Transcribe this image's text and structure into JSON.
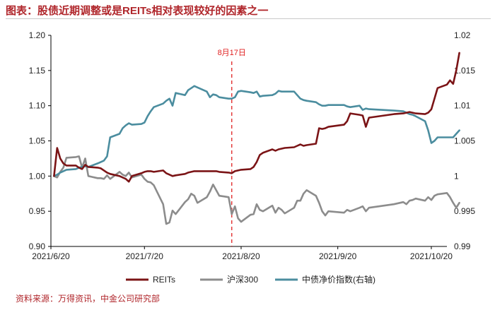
{
  "title": "图表：股债近期调整或是REITs相对表现较好的因素之一",
  "source": "资料来源：万得资讯，中金公司研究部",
  "colors": {
    "reits": "#7b1416",
    "hs300": "#8c8c8c",
    "bond": "#4b8d9f",
    "annotation": "#e02020"
  },
  "chart_data": {
    "type": "line",
    "x_tick_labels": [
      "2021/6/20",
      "2021/7/20",
      "2021/8/20",
      "2021/9/20",
      "2021/10/20"
    ],
    "x_range": [
      "2021/6/20",
      "2021/10/25"
    ],
    "ylim": [
      0.9,
      1.2
    ],
    "y_ticks": [
      "0.90",
      "0.95",
      "1.00",
      "1.05",
      "1.10",
      "1.15",
      "1.20"
    ],
    "y2lim": [
      0.99,
      1.02
    ],
    "y2_ticks": [
      "0.99",
      "0.995",
      "1",
      "1.005",
      "1.01",
      "1.015",
      "1.02"
    ],
    "grid": false,
    "legend_position": "bottom",
    "annotation": {
      "label": "8月17日",
      "x": "2021/8/17"
    },
    "series": [
      {
        "name": "REITs",
        "axis": "left",
        "color_key": "reits",
        "points": [
          [
            "2021/6/21",
            1.0
          ],
          [
            "2021/6/22",
            1.04
          ],
          [
            "2021/6/23",
            1.025
          ],
          [
            "2021/6/24",
            1.018
          ],
          [
            "2021/6/25",
            1.015
          ],
          [
            "2021/6/28",
            1.015
          ],
          [
            "2021/6/29",
            1.012
          ],
          [
            "2021/6/30",
            1.01
          ],
          [
            "2021/7/1",
            1.016
          ],
          [
            "2021/7/2",
            1.013
          ],
          [
            "2021/7/5",
            1.012
          ],
          [
            "2021/7/6",
            1.011
          ],
          [
            "2021/7/7",
            1.008
          ],
          [
            "2021/7/8",
            1.005
          ],
          [
            "2021/7/9",
            1.003
          ],
          [
            "2021/7/12",
            1.0
          ],
          [
            "2021/7/13",
            0.998
          ],
          [
            "2021/7/14",
            0.996
          ],
          [
            "2021/7/15",
            0.992
          ],
          [
            "2021/7/16",
            1.0
          ],
          [
            "2021/7/19",
            1.004
          ],
          [
            "2021/7/20",
            1.006
          ],
          [
            "2021/7/21",
            1.007
          ],
          [
            "2021/7/22",
            1.007
          ],
          [
            "2021/7/23",
            1.006
          ],
          [
            "2021/7/26",
            1.008
          ],
          [
            "2021/7/27",
            1.004
          ],
          [
            "2021/7/28",
            1.002
          ],
          [
            "2021/7/29",
            1.0
          ],
          [
            "2021/7/30",
            1.001
          ],
          [
            "2021/8/2",
            1.003
          ],
          [
            "2021/8/3",
            1.005
          ],
          [
            "2021/8/4",
            1.006
          ],
          [
            "2021/8/5",
            1.007
          ],
          [
            "2021/8/6",
            1.007
          ],
          [
            "2021/8/9",
            1.007
          ],
          [
            "2021/8/10",
            1.007
          ],
          [
            "2021/8/11",
            1.007
          ],
          [
            "2021/8/12",
            1.007
          ],
          [
            "2021/8/13",
            1.006
          ],
          [
            "2021/8/16",
            1.005
          ],
          [
            "2021/8/17",
            1.004
          ],
          [
            "2021/8/18",
            1.007
          ],
          [
            "2021/8/19",
            1.008
          ],
          [
            "2021/8/20",
            1.009
          ],
          [
            "2021/8/23",
            1.01
          ],
          [
            "2021/8/24",
            1.013
          ],
          [
            "2021/8/25",
            1.02
          ],
          [
            "2021/8/26",
            1.03
          ],
          [
            "2021/8/27",
            1.033
          ],
          [
            "2021/8/30",
            1.038
          ],
          [
            "2021/8/31",
            1.036
          ],
          [
            "2021/9/1",
            1.038
          ],
          [
            "2021/9/2",
            1.039
          ],
          [
            "2021/9/3",
            1.04
          ],
          [
            "2021/9/6",
            1.041
          ],
          [
            "2021/9/7",
            1.043
          ],
          [
            "2021/9/8",
            1.045
          ],
          [
            "2021/9/9",
            1.043
          ],
          [
            "2021/9/10",
            1.044
          ],
          [
            "2021/9/13",
            1.046
          ],
          [
            "2021/9/14",
            1.068
          ],
          [
            "2021/9/15",
            1.067
          ],
          [
            "2021/9/16",
            1.068
          ],
          [
            "2021/9/17",
            1.07
          ],
          [
            "2021/9/22",
            1.073
          ],
          [
            "2021/9/23",
            1.078
          ],
          [
            "2021/9/24",
            1.089
          ],
          [
            "2021/9/27",
            1.087
          ],
          [
            "2021/9/28",
            1.086
          ],
          [
            "2021/9/29",
            1.07
          ],
          [
            "2021/9/30",
            1.083
          ],
          [
            "2021/10/8",
            1.088
          ],
          [
            "2021/10/11",
            1.089
          ],
          [
            "2021/10/12",
            1.09
          ],
          [
            "2021/10/13",
            1.091
          ],
          [
            "2021/10/14",
            1.09
          ],
          [
            "2021/10/15",
            1.089
          ],
          [
            "2021/10/18",
            1.088
          ],
          [
            "2021/10/19",
            1.09
          ],
          [
            "2021/10/20",
            1.095
          ],
          [
            "2021/10/21",
            1.11
          ],
          [
            "2021/10/22",
            1.125
          ],
          [
            "2021/10/25",
            1.13
          ],
          [
            "2021/10/26",
            1.136
          ],
          [
            "2021/10/27",
            1.131
          ],
          [
            "2021/10/28",
            1.15
          ],
          [
            "2021/10/29",
            1.175
          ]
        ]
      },
      {
        "name": "沪深300",
        "axis": "left",
        "color_key": "hs300",
        "points": [
          [
            "2021/6/21",
            1.0
          ],
          [
            "2021/6/22",
            0.998
          ],
          [
            "2021/6/23",
            1.006
          ],
          [
            "2021/6/24",
            1.012
          ],
          [
            "2021/6/25",
            1.026
          ],
          [
            "2021/6/28",
            1.027
          ],
          [
            "2021/6/29",
            1.028
          ],
          [
            "2021/6/30",
            1.012
          ],
          [
            "2021/7/1",
            1.025
          ],
          [
            "2021/7/2",
            1.0
          ],
          [
            "2021/7/5",
            0.997
          ],
          [
            "2021/7/6",
            0.997
          ],
          [
            "2021/7/7",
            0.996
          ],
          [
            "2021/7/8",
            1.001
          ],
          [
            "2021/7/9",
            0.996
          ],
          [
            "2021/7/12",
            1.006
          ],
          [
            "2021/7/13",
            1.002
          ],
          [
            "2021/7/14",
            1.0
          ],
          [
            "2021/7/15",
            1.005
          ],
          [
            "2021/7/16",
            0.998
          ],
          [
            "2021/7/19",
            1.002
          ],
          [
            "2021/7/20",
            0.996
          ],
          [
            "2021/7/21",
            0.992
          ],
          [
            "2021/7/22",
            0.991
          ],
          [
            "2021/7/23",
            0.987
          ],
          [
            "2021/7/26",
            0.96
          ],
          [
            "2021/7/27",
            0.932
          ],
          [
            "2021/7/28",
            0.934
          ],
          [
            "2021/7/29",
            0.951
          ],
          [
            "2021/7/30",
            0.946
          ],
          [
            "2021/8/2",
            0.963
          ],
          [
            "2021/8/3",
            0.967
          ],
          [
            "2021/8/4",
            0.975
          ],
          [
            "2021/8/5",
            0.972
          ],
          [
            "2021/8/6",
            0.962
          ],
          [
            "2021/8/9",
            0.97
          ],
          [
            "2021/8/10",
            0.978
          ],
          [
            "2021/8/11",
            0.988
          ],
          [
            "2021/8/12",
            0.98
          ],
          [
            "2021/8/13",
            0.972
          ],
          [
            "2021/8/16",
            0.97
          ],
          [
            "2021/8/17",
            0.946
          ],
          [
            "2021/8/18",
            0.957
          ],
          [
            "2021/8/19",
            0.94
          ],
          [
            "2021/8/20",
            0.935
          ],
          [
            "2021/8/23",
            0.945
          ],
          [
            "2021/8/24",
            0.946
          ],
          [
            "2021/8/25",
            0.96
          ],
          [
            "2021/8/26",
            0.952
          ],
          [
            "2021/8/27",
            0.95
          ],
          [
            "2021/8/30",
            0.958
          ],
          [
            "2021/8/31",
            0.948
          ],
          [
            "2021/9/1",
            0.955
          ],
          [
            "2021/9/2",
            0.952
          ],
          [
            "2021/9/3",
            0.947
          ],
          [
            "2021/9/6",
            0.955
          ],
          [
            "2021/9/7",
            0.965
          ],
          [
            "2021/9/8",
            0.965
          ],
          [
            "2021/9/9",
            0.975
          ],
          [
            "2021/9/10",
            0.98
          ],
          [
            "2021/9/13",
            0.972
          ],
          [
            "2021/9/14",
            0.962
          ],
          [
            "2021/9/15",
            0.95
          ],
          [
            "2021/9/16",
            0.944
          ],
          [
            "2021/9/17",
            0.95
          ],
          [
            "2021/9/22",
            0.948
          ],
          [
            "2021/9/23",
            0.952
          ],
          [
            "2021/9/24",
            0.95
          ],
          [
            "2021/9/27",
            0.955
          ],
          [
            "2021/9/28",
            0.957
          ],
          [
            "2021/9/29",
            0.95
          ],
          [
            "2021/9/30",
            0.955
          ],
          [
            "2021/10/8",
            0.96
          ],
          [
            "2021/10/11",
            0.963
          ],
          [
            "2021/10/12",
            0.96
          ],
          [
            "2021/10/13",
            0.965
          ],
          [
            "2021/10/14",
            0.966
          ],
          [
            "2021/10/15",
            0.968
          ],
          [
            "2021/10/18",
            0.965
          ],
          [
            "2021/10/19",
            0.97
          ],
          [
            "2021/10/20",
            0.966
          ],
          [
            "2021/10/21",
            0.972
          ],
          [
            "2021/10/22",
            0.974
          ],
          [
            "2021/10/25",
            0.976
          ],
          [
            "2021/10/26",
            0.97
          ],
          [
            "2021/10/27",
            0.962
          ],
          [
            "2021/10/28",
            0.955
          ],
          [
            "2021/10/29",
            0.962
          ]
        ]
      },
      {
        "name": "中债净价指数(右轴)",
        "axis": "right",
        "color_key": "bond",
        "points": [
          [
            "2021/6/21",
            1.0
          ],
          [
            "2021/6/22",
            1.0002
          ],
          [
            "2021/6/23",
            1.0005
          ],
          [
            "2021/6/24",
            1.0007
          ],
          [
            "2021/6/25",
            1.0009
          ],
          [
            "2021/6/28",
            1.001
          ],
          [
            "2021/6/29",
            1.0012
          ],
          [
            "2021/6/30",
            1.0013
          ],
          [
            "2021/7/1",
            1.0014
          ],
          [
            "2021/7/2",
            1.0013
          ],
          [
            "2021/7/5",
            1.0018
          ],
          [
            "2021/7/6",
            1.002
          ],
          [
            "2021/7/7",
            1.0022
          ],
          [
            "2021/7/8",
            1.0028
          ],
          [
            "2021/7/9",
            1.0055
          ],
          [
            "2021/7/12",
            1.006
          ],
          [
            "2021/7/13",
            1.0068
          ],
          [
            "2021/7/14",
            1.0072
          ],
          [
            "2021/7/15",
            1.0075
          ],
          [
            "2021/7/16",
            1.0073
          ],
          [
            "2021/7/19",
            1.0074
          ],
          [
            "2021/7/20",
            1.0076
          ],
          [
            "2021/7/21",
            1.0085
          ],
          [
            "2021/7/22",
            1.0092
          ],
          [
            "2021/7/23",
            1.0098
          ],
          [
            "2021/7/26",
            1.0103
          ],
          [
            "2021/7/27",
            1.0107
          ],
          [
            "2021/7/28",
            1.011
          ],
          [
            "2021/7/29",
            1.01
          ],
          [
            "2021/7/30",
            1.0118
          ],
          [
            "2021/8/2",
            1.0115
          ],
          [
            "2021/8/3",
            1.0122
          ],
          [
            "2021/8/4",
            1.0125
          ],
          [
            "2021/8/5",
            1.0128
          ],
          [
            "2021/8/6",
            1.0126
          ],
          [
            "2021/8/9",
            1.012
          ],
          [
            "2021/8/10",
            1.0112
          ],
          [
            "2021/8/11",
            1.0116
          ],
          [
            "2021/8/12",
            1.0115
          ],
          [
            "2021/8/13",
            1.0112
          ],
          [
            "2021/8/16",
            1.011
          ],
          [
            "2021/8/17",
            1.011
          ],
          [
            "2021/8/18",
            1.0112
          ],
          [
            "2021/8/19",
            1.012
          ],
          [
            "2021/8/20",
            1.0121
          ],
          [
            "2021/8/23",
            1.0119
          ],
          [
            "2021/8/24",
            1.0118
          ],
          [
            "2021/8/25",
            1.012
          ],
          [
            "2021/8/26",
            1.0113
          ],
          [
            "2021/8/27",
            1.0114
          ],
          [
            "2021/8/30",
            1.0115
          ],
          [
            "2021/8/31",
            1.0117
          ],
          [
            "2021/9/1",
            1.0121
          ],
          [
            "2021/9/2",
            1.012
          ],
          [
            "2021/9/3",
            1.012
          ],
          [
            "2021/9/6",
            1.012
          ],
          [
            "2021/9/7",
            1.0115
          ],
          [
            "2021/9/8",
            1.011
          ],
          [
            "2021/9/9",
            1.0108
          ],
          [
            "2021/9/10",
            1.0107
          ],
          [
            "2021/9/13",
            1.0105
          ],
          [
            "2021/9/14",
            1.0102
          ],
          [
            "2021/9/15",
            1.01
          ],
          [
            "2021/9/16",
            1.01
          ],
          [
            "2021/9/17",
            1.0101
          ],
          [
            "2021/9/22",
            1.0101
          ],
          [
            "2021/9/23",
            1.0099
          ],
          [
            "2021/9/24",
            1.0098
          ],
          [
            "2021/9/27",
            1.01
          ],
          [
            "2021/9/28",
            1.0094
          ],
          [
            "2021/9/29",
            1.0096
          ],
          [
            "2021/9/30",
            1.0095
          ],
          [
            "2021/10/8",
            1.0093
          ],
          [
            "2021/10/11",
            1.0092
          ],
          [
            "2021/10/12",
            1.009
          ],
          [
            "2021/10/13",
            1.0088
          ],
          [
            "2021/10/14",
            1.0087
          ],
          [
            "2021/10/15",
            1.0085
          ],
          [
            "2021/10/18",
            1.0078
          ],
          [
            "2021/10/19",
            1.0065
          ],
          [
            "2021/10/20",
            1.0047
          ],
          [
            "2021/10/21",
            1.005
          ],
          [
            "2021/10/22",
            1.0055
          ],
          [
            "2021/10/25",
            1.0055
          ],
          [
            "2021/10/26",
            1.0055
          ],
          [
            "2021/10/27",
            1.0055
          ],
          [
            "2021/10/28",
            1.006
          ],
          [
            "2021/10/29",
            1.0065
          ]
        ]
      }
    ]
  }
}
